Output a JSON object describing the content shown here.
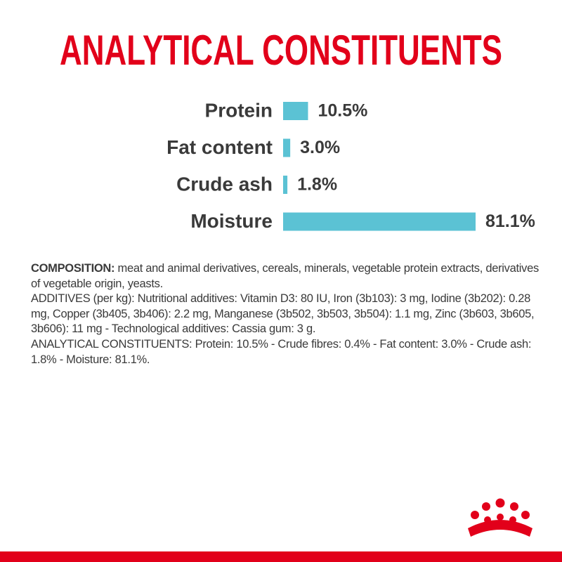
{
  "chart_data": {
    "type": "bar",
    "orientation": "horizontal",
    "title": "ANALYTICAL CONSTITUENTS",
    "categories": [
      "Protein",
      "Fat content",
      "Crude ash",
      "Moisture"
    ],
    "values": [
      10.5,
      3.0,
      1.8,
      81.1
    ],
    "value_labels": [
      "10.5%",
      "3.0%",
      "1.8%",
      "81.1%"
    ],
    "color": "#5bc2d4"
  },
  "composition": {
    "label": "COMPOSITION:",
    "text": "meat and animal derivatives, cereals, minerals, vegetable protein extracts, derivatives of vegetable origin, yeasts."
  },
  "additives": "ADDITIVES (per kg): Nutritional additives: Vitamin D3: 80 IU, Iron (3b103): 3 mg, Iodine (3b202): 0.28 mg, Copper (3b405, 3b406): 2.2 mg, Manganese (3b502, 3b503, 3b504): 1.1 mg, Zinc (3b603, 3b605, 3b606): 11 mg - Technological additives: Cassia gum: 3 g.",
  "analytical_constituents": "ANALYTICAL CONSTITUENTS: Protein: 10.5% - Crude fibres: 0.4% - Fat content: 3.0% - Crude ash: 1.8% - Moisture: 81.1%."
}
